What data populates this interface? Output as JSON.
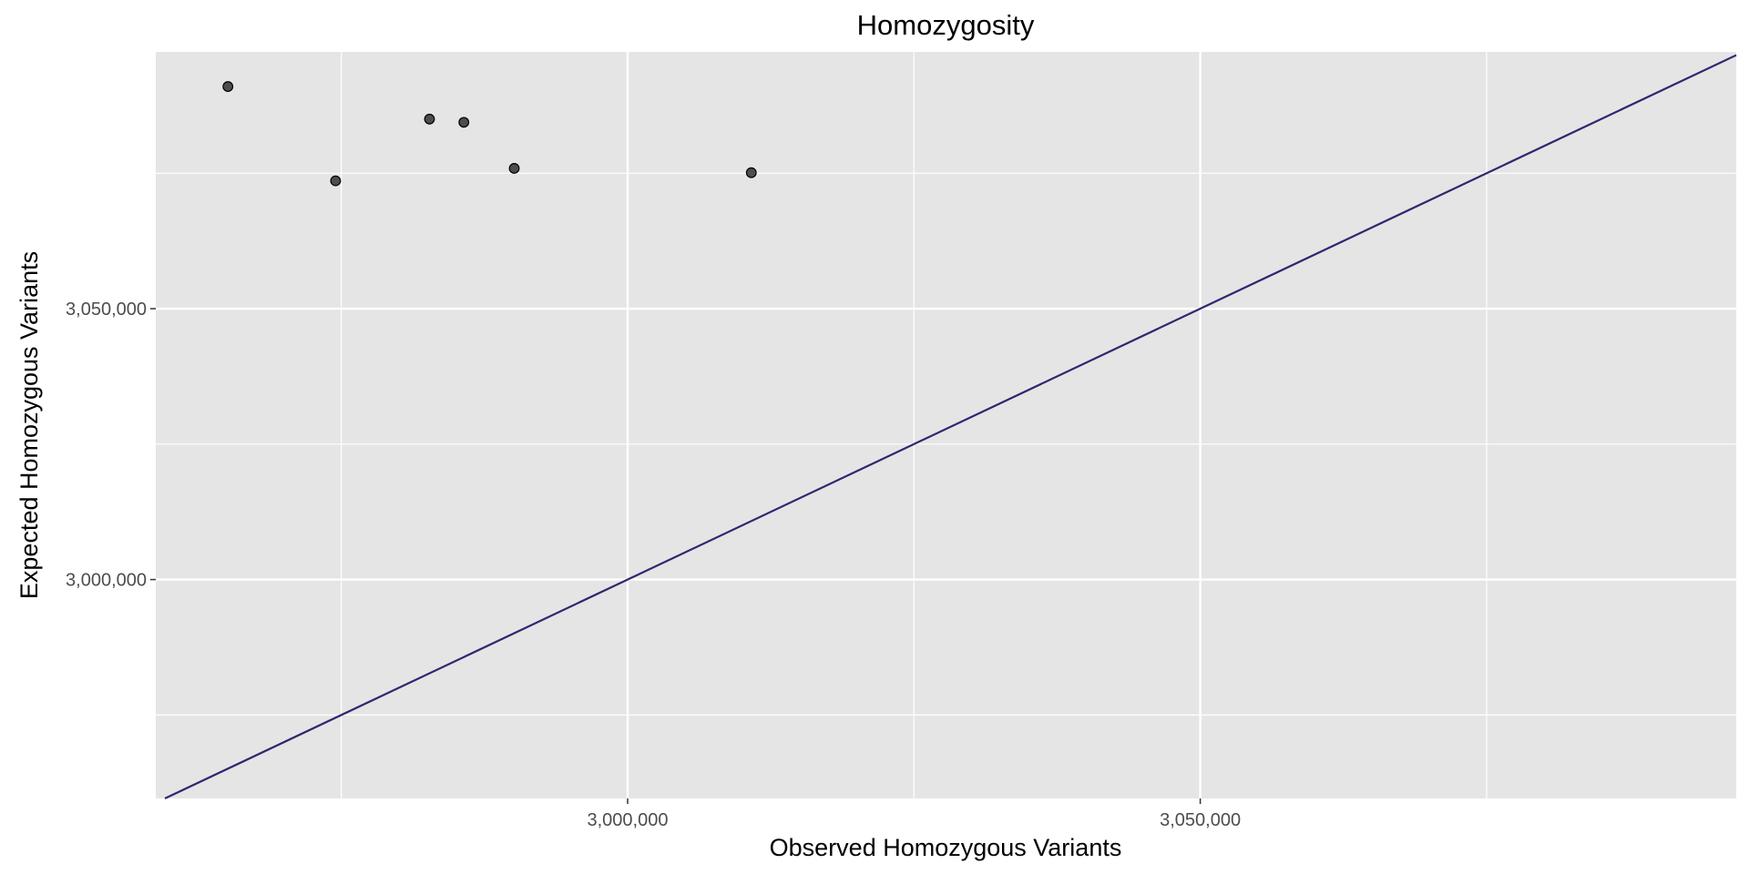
{
  "colors": {
    "panel_background": "#e5e5e5",
    "grid_line": "#ffffff",
    "point_fill": "#333333",
    "reference_line": "#2e2770"
  },
  "chart_data": {
    "type": "scatter",
    "title": "Homozygosity",
    "xlabel": "Observed Homozygous Variants",
    "ylabel": "Expected Homozygous Variants",
    "xlim": [
      2958800,
      3096800
    ],
    "ylim": [
      2959600,
      3097400
    ],
    "x_ticks": [
      3000000,
      3050000
    ],
    "x_tick_labels": [
      "3,000,000",
      "3,050,000"
    ],
    "y_ticks": [
      3000000,
      3050000
    ],
    "y_tick_labels": [
      "3,000,000",
      "3,050,000"
    ],
    "x_minor": [
      2975000,
      3025000,
      3075000
    ],
    "y_minor": [
      2975000,
      3025000,
      3075000
    ],
    "grid": true,
    "reference_line": "y = x",
    "points": [
      {
        "x": 2965100,
        "y": 3091000
      },
      {
        "x": 2974500,
        "y": 3073600
      },
      {
        "x": 2982700,
        "y": 3085000
      },
      {
        "x": 2985700,
        "y": 3084400
      },
      {
        "x": 2990100,
        "y": 3075900
      },
      {
        "x": 3010800,
        "y": 3075100
      }
    ]
  }
}
